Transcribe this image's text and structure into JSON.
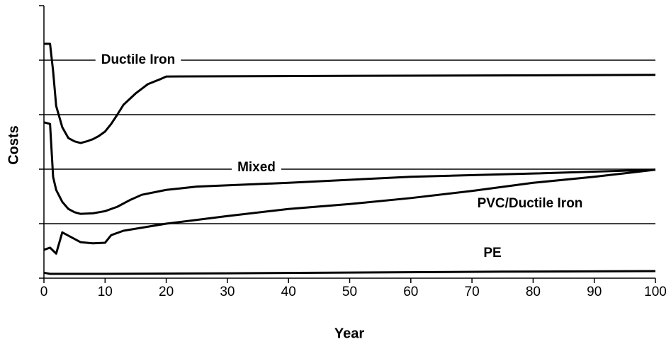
{
  "chart_data": {
    "type": "line",
    "x_label": "Year",
    "y_label": "Costs",
    "xlim": [
      0,
      100
    ],
    "xticks": [
      0,
      10,
      20,
      30,
      40,
      50,
      60,
      70,
      80,
      90,
      100
    ],
    "ylim": [
      0,
      5
    ],
    "yticks": [
      0,
      1,
      2,
      3,
      4,
      5
    ],
    "grid": true,
    "series": [
      {
        "name": "Ductile Iron",
        "color": "#000000",
        "x": [
          0,
          1,
          1.5,
          2,
          3,
          4,
          5,
          6,
          7,
          8,
          9,
          10,
          11,
          12,
          13,
          15,
          17,
          19,
          20,
          100
        ],
        "values": [
          4.3,
          4.3,
          3.8,
          3.16,
          2.77,
          2.57,
          2.51,
          2.48,
          2.51,
          2.55,
          2.61,
          2.69,
          2.83,
          3.0,
          3.18,
          3.39,
          3.56,
          3.65,
          3.7,
          3.73
        ]
      },
      {
        "name": "Mixed",
        "color": "#000000",
        "x": [
          0,
          1,
          1.5,
          2,
          3,
          4,
          5,
          6,
          8,
          10,
          12,
          14,
          16,
          20,
          25,
          40,
          60,
          80,
          100
        ],
        "values": [
          2.86,
          2.83,
          1.86,
          1.62,
          1.4,
          1.27,
          1.21,
          1.18,
          1.19,
          1.23,
          1.31,
          1.43,
          1.53,
          1.62,
          1.68,
          1.75,
          1.86,
          1.92,
          1.99
        ]
      },
      {
        "name": "PVC/Ductile Iron",
        "color": "#000000",
        "x": [
          0,
          1,
          2,
          3,
          4,
          6,
          8,
          10,
          11,
          13,
          20,
          30,
          40,
          50,
          60,
          70,
          80,
          90,
          100
        ],
        "values": [
          0.52,
          0.56,
          0.45,
          0.84,
          0.78,
          0.66,
          0.64,
          0.65,
          0.79,
          0.87,
          1.0,
          1.14,
          1.27,
          1.36,
          1.47,
          1.6,
          1.75,
          1.86,
          1.99
        ]
      },
      {
        "name": "PE",
        "color": "#000000",
        "x": [
          0,
          1,
          10,
          30,
          75,
          100
        ],
        "values": [
          0.1,
          0.08,
          0.08,
          0.09,
          0.12,
          0.13
        ]
      }
    ]
  }
}
